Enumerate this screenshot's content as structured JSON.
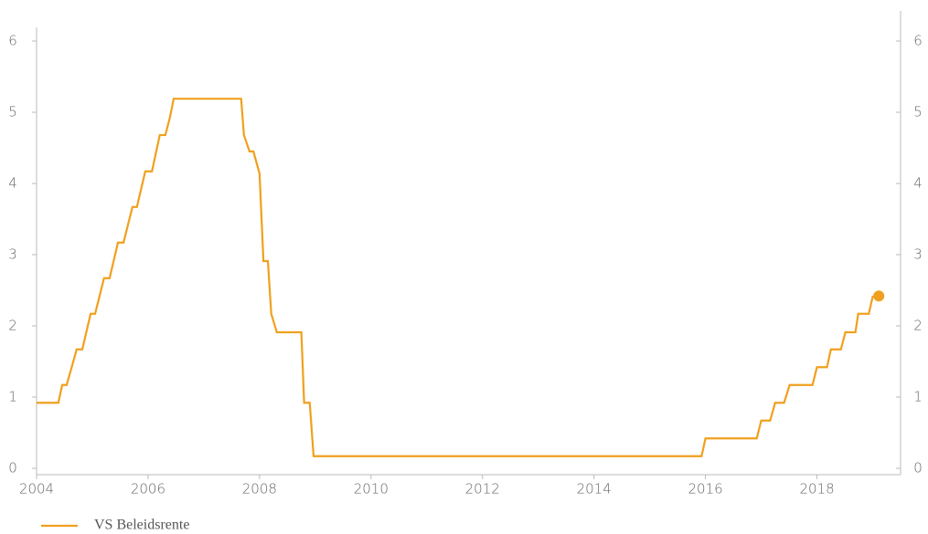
{
  "chart_data": {
    "type": "line",
    "x": [
      2004.0,
      2004.39,
      2004.46,
      2004.54,
      2004.72,
      2004.82,
      2004.97,
      2005.05,
      2005.21,
      2005.31,
      2005.46,
      2005.56,
      2005.72,
      2005.8,
      2005.95,
      2006.07,
      2006.21,
      2006.31,
      2006.39,
      2006.46,
      2007.67,
      2007.72,
      2007.82,
      2007.89,
      2008.0,
      2008.07,
      2008.15,
      2008.21,
      2008.31,
      2008.75,
      2008.8,
      2008.9,
      2008.97,
      2015.93,
      2016.0,
      2016.92,
      2017.0,
      2017.16,
      2017.25,
      2017.41,
      2017.51,
      2017.92,
      2018.0,
      2018.18,
      2018.25,
      2018.43,
      2018.51,
      2018.69,
      2018.74,
      2018.93,
      2019.0,
      2019.11
    ],
    "series": [
      {
        "name": "VS Beleidsrente",
        "color": "#f0a01e",
        "values": [
          0.92,
          0.92,
          1.17,
          1.17,
          1.67,
          1.67,
          2.17,
          2.17,
          2.67,
          2.67,
          3.17,
          3.17,
          3.67,
          3.67,
          4.17,
          4.17,
          4.68,
          4.68,
          4.92,
          5.19,
          5.19,
          4.68,
          4.45,
          4.45,
          4.14,
          2.91,
          2.91,
          2.17,
          1.91,
          1.91,
          0.92,
          0.92,
          0.17,
          0.17,
          0.42,
          0.42,
          0.67,
          0.67,
          0.92,
          0.92,
          1.17,
          1.17,
          1.42,
          1.42,
          1.67,
          1.67,
          1.91,
          1.91,
          2.17,
          2.17,
          2.41,
          2.42
        ]
      }
    ],
    "xlim": [
      2004,
      2019.5
    ],
    "xticks": [
      2004,
      2006,
      2008,
      2010,
      2012,
      2014,
      2016,
      2018
    ],
    "ylim": [
      0,
      6
    ],
    "yticks": [
      0,
      1,
      2,
      3,
      4,
      5,
      6
    ],
    "y2lim": [
      0,
      6
    ],
    "y2ticks": [
      0,
      1,
      2,
      3,
      4,
      5,
      6
    ],
    "grid": false,
    "legend": "bottom"
  }
}
